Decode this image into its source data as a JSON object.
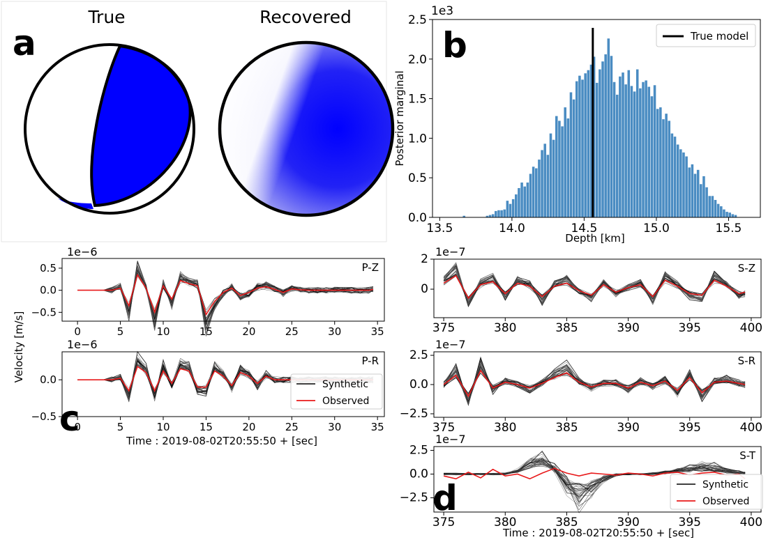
{
  "figure": {
    "panel_a": "a",
    "panel_b": "b",
    "panel_c": "c",
    "panel_d": "d"
  },
  "colors": {
    "hist": "#4a8cc2",
    "observed": "#e8191a",
    "synthetic": "#000000",
    "beachball": "#0000ff",
    "station": "#0000ee"
  },
  "chart_data": [
    {
      "id": "a",
      "type": "beachball",
      "titles": [
        "True",
        "Recovered"
      ]
    },
    {
      "id": "b",
      "type": "bar",
      "xlabel": "Depth [km]",
      "ylabel": "Posterior marginal",
      "yscale_label": "1e3",
      "xlim": [
        13.45,
        15.72
      ],
      "ylim": [
        0,
        2.5
      ],
      "xticks": [
        "13.5",
        "14.0",
        "14.5",
        "15.0",
        "15.5"
      ],
      "yticks": [
        "0.0",
        "0.5",
        "1.0",
        "1.5",
        "2.0",
        "2.5"
      ],
      "true_model": 14.56,
      "legend": [
        "True model"
      ],
      "legend_loc": "upper right",
      "bin_start": 13.5,
      "bin_width": 0.02,
      "values": [
        0.0,
        0.0,
        0.0,
        0.0,
        0.0,
        0.0,
        0.0,
        0.0,
        0.02,
        0.0,
        0.0,
        0.0,
        0.0,
        0.0,
        0.0,
        0.0,
        0.02,
        0.03,
        0.04,
        0.08,
        0.09,
        0.09,
        0.1,
        0.21,
        0.17,
        0.23,
        0.29,
        0.37,
        0.44,
        0.39,
        0.44,
        0.55,
        0.64,
        0.62,
        0.73,
        0.85,
        0.93,
        0.79,
        1.06,
        0.98,
        1.28,
        1.22,
        1.15,
        1.39,
        1.25,
        1.58,
        1.49,
        1.72,
        1.79,
        1.74,
        1.82,
        1.86,
        1.93,
        2.03,
        1.7,
        1.87,
        1.97,
        2.06,
        2.26,
        2.04,
        1.71,
        1.55,
        1.78,
        1.83,
        1.68,
        1.86,
        1.66,
        1.59,
        1.87,
        1.63,
        1.71,
        1.73,
        1.65,
        1.53,
        1.67,
        1.37,
        1.39,
        1.24,
        1.31,
        1.22,
        1.06,
        1.02,
        0.92,
        0.86,
        0.82,
        0.77,
        0.63,
        0.67,
        0.55,
        0.6,
        0.42,
        0.52,
        0.38,
        0.27,
        0.27,
        0.22,
        0.17,
        0.14,
        0.1,
        0.07,
        0.06,
        0.04,
        0.03,
        0.0,
        0.0,
        0.0,
        0.0,
        0.0,
        0.0
      ]
    },
    {
      "id": "P-Z",
      "type": "line",
      "label": "P-Z",
      "xlim": [
        -1.8,
        35.8
      ],
      "ylim": [
        -0.7,
        0.72
      ],
      "scale_label": "1e−6",
      "xticks": [
        "0",
        "5",
        "10",
        "15",
        "20",
        "25",
        "30",
        "35"
      ],
      "yticks": [
        "0.5",
        "0.0",
        "−0.5"
      ],
      "x": [
        0,
        1,
        2,
        3,
        4,
        5,
        6,
        7,
        8,
        9,
        10,
        11,
        12,
        13,
        14,
        15,
        16,
        17,
        18,
        19,
        20,
        21,
        22,
        23,
        24,
        25,
        26,
        27,
        28,
        29,
        30,
        31,
        32,
        33,
        34,
        34.5
      ],
      "observed": [
        0,
        0,
        0,
        0,
        0,
        0.05,
        -0.35,
        0.35,
        0.05,
        -0.5,
        0.1,
        -0.2,
        0.22,
        0.15,
        0.1,
        -0.55,
        -0.25,
        -0.05,
        0.05,
        -0.12,
        -0.05,
        0.05,
        0.08,
        0.02,
        -0.05,
        0.03,
        0.01,
        0.0,
        0.0,
        0.0,
        0.0,
        0.0,
        0.0,
        0.0,
        0.0,
        0.02
      ]
    },
    {
      "id": "P-R",
      "type": "line",
      "label": "P-R",
      "xlim": [
        -1.8,
        35.8
      ],
      "ylim": [
        -0.5,
        0.38
      ],
      "scale_label": "1e−6",
      "ylabel": "Velocity [m/s]",
      "xlabel": "Time : 2019-08-02T20:55:50 + [sec]",
      "xticks": [
        "0",
        "5",
        "10",
        "15",
        "20",
        "25",
        "30",
        "35"
      ],
      "yticks": [
        "0.0",
        "−0.5"
      ],
      "legend": [
        "Synthetic",
        "Observed"
      ],
      "legend_loc": "lower right",
      "x": [
        0,
        1,
        2,
        3,
        4,
        5,
        6,
        7,
        8,
        9,
        10,
        11,
        12,
        13,
        14,
        15,
        16,
        17,
        18,
        19,
        20,
        21,
        22,
        23,
        24,
        25,
        26,
        27,
        28,
        29,
        30,
        31,
        32,
        33,
        34,
        34.5
      ],
      "observed": [
        0,
        0,
        0,
        0,
        0,
        0.02,
        -0.15,
        0.18,
        0.1,
        -0.15,
        0.12,
        -0.05,
        0.15,
        0.12,
        -0.1,
        -0.1,
        0.12,
        0.05,
        -0.08,
        0.1,
        0.05,
        -0.05,
        0.05,
        0.0,
        0.0,
        0.0,
        0.0,
        0.0,
        0.0,
        0.0,
        0.0,
        0.0,
        0.0,
        0.0,
        0.0,
        0.0
      ]
    },
    {
      "id": "S-Z",
      "type": "line",
      "label": "S-Z",
      "xlim": [
        374.2,
        400.8
      ],
      "ylim": [
        -1.9,
        2.0
      ],
      "scale_label": "1e−7",
      "xticks": [
        "375",
        "380",
        "385",
        "390",
        "395",
        "400"
      ],
      "yticks": [
        "2",
        "0"
      ],
      "x": [
        375,
        376,
        377,
        378,
        379,
        380,
        381,
        382,
        383,
        384,
        385,
        386,
        387,
        388,
        389,
        390,
        391,
        392,
        393,
        394,
        395,
        396,
        397,
        398,
        399,
        399.5
      ],
      "observed": [
        0.4,
        0.9,
        -0.6,
        0.3,
        0.5,
        -0.3,
        0.4,
        0.2,
        -0.5,
        0.2,
        0.4,
        -0.1,
        -0.4,
        0.3,
        -0.2,
        0.1,
        0.3,
        -0.5,
        0.6,
        0.2,
        -0.3,
        -0.4,
        0.6,
        0.2,
        -0.3,
        -0.2
      ]
    },
    {
      "id": "S-R",
      "type": "line",
      "label": "S-R",
      "xlim": [
        374.2,
        400.8
      ],
      "ylim": [
        -2.8,
        2.8
      ],
      "scale_label": "1e−7",
      "xticks": [
        "375",
        "380",
        "385",
        "390",
        "395",
        "400"
      ],
      "yticks": [
        "2.5",
        "0.0",
        "−2.5"
      ],
      "x": [
        375,
        376,
        377,
        378,
        379,
        380,
        381,
        382,
        383,
        384,
        385,
        386,
        387,
        388,
        389,
        390,
        391,
        392,
        393,
        394,
        395,
        396,
        397,
        398,
        399,
        399.5
      ],
      "observed": [
        0.0,
        0.8,
        -1.0,
        1.2,
        -0.3,
        0.2,
        0.0,
        -0.3,
        0.1,
        0.6,
        1.0,
        0.2,
        -0.2,
        0.1,
        0.1,
        -0.3,
        0.2,
        -0.1,
        0.3,
        -0.5,
        0.6,
        -0.7,
        0.2,
        0.3,
        0.1,
        0.0
      ]
    },
    {
      "id": "S-T",
      "type": "line",
      "label": "S-T",
      "xlim": [
        374.2,
        400.8
      ],
      "ylim": [
        -4.0,
        2.9
      ],
      "scale_label": "1e−7",
      "xlabel": "Time : 2019-08-02T20:55:50 + [sec]",
      "xticks": [
        "375",
        "380",
        "385",
        "390",
        "395",
        "400"
      ],
      "yticks": [
        "2.5",
        "0.0",
        "−2.5"
      ],
      "legend": [
        "Synthetic",
        "Observed"
      ],
      "legend_loc": "lower right",
      "x": [
        375,
        376,
        377,
        378,
        379,
        380,
        381,
        382,
        383,
        384,
        385,
        386,
        387,
        388,
        389,
        390,
        391,
        392,
        393,
        394,
        395,
        396,
        397,
        398,
        399,
        399.5
      ],
      "observed": [
        -0.2,
        -0.5,
        0.2,
        -0.4,
        0.5,
        -0.2,
        0.0,
        -0.5,
        0.1,
        0.6,
        0.1,
        -0.2,
        0.1,
        0.0,
        -0.1,
        0.1,
        0.0,
        -0.2,
        0.1,
        0.2,
        -0.1,
        0.1,
        0.2,
        -0.1,
        0.0,
        -0.5
      ]
    }
  ]
}
